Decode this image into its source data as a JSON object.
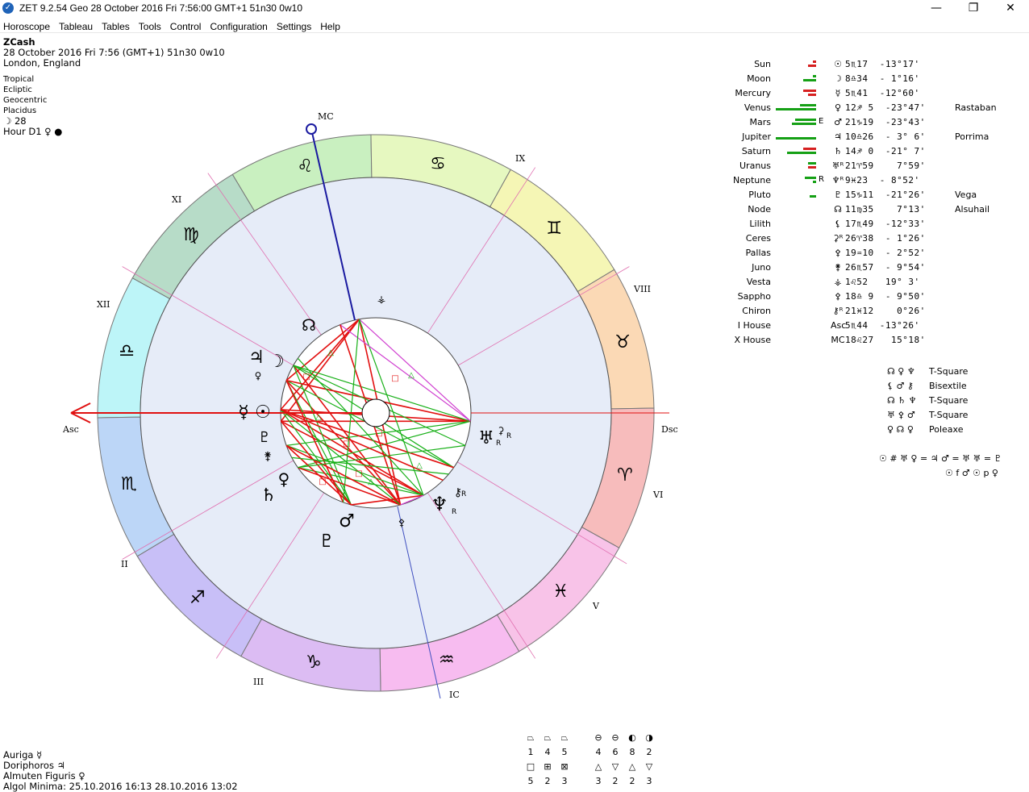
{
  "window": {
    "title": "ZET 9.2.54 Geo   28 October 2016   Fri    7:56:00 GMT+1 51n30  0w10",
    "minimize": "—",
    "maximize": "❐",
    "close": "✕"
  },
  "menu": [
    "Horoscope",
    "Tableau",
    "Tables",
    "Tools",
    "Control",
    "Configuration",
    "Settings",
    "Help"
  ],
  "info": {
    "name": "ZCash",
    "datetime": "28 October 2016   Fri    7:56  (GMT+1)  51n30   0w10",
    "place": "London, England",
    "settings": [
      "Tropical",
      "Ecliptic",
      "Geocentric",
      "Placidus"
    ],
    "moon_day": "☽   28",
    "hour": "Hour D1  ♀  ●"
  },
  "chart_labels": {
    "mc": "MC",
    "ic": "IC",
    "asc": "Asc",
    "dsc": "Dsc",
    "houses": [
      "XII",
      "XI",
      "IX",
      "VIII",
      "VI",
      "V",
      "III",
      "II"
    ]
  },
  "planets": [
    {
      "name": "Sun",
      "glyph": "☉",
      "pos": "5♏17  -13°17'",
      "star": "",
      "bars": [
        {
          "c": "#d62020",
          "w": 4,
          "row": 0
        },
        {
          "c": "#d62020",
          "w": 10,
          "row": 1
        }
      ]
    },
    {
      "name": "Moon",
      "glyph": "☽",
      "pos": "8♎34  - 1°16'",
      "star": "",
      "bars": [
        {
          "c": "#15a015",
          "w": 4,
          "row": 0
        },
        {
          "c": "#15a015",
          "w": 16,
          "row": 1
        }
      ]
    },
    {
      "name": "Mercury",
      "glyph": "☿",
      "pos": "5♏41  -12°60'",
      "star": "",
      "bars": [
        {
          "c": "#d62020",
          "w": 16,
          "row": 0
        },
        {
          "c": "#d62020",
          "w": 10,
          "row": 1
        }
      ]
    },
    {
      "name": "Venus",
      "glyph": "♀",
      "pos": "12♐ 5  -23°47'",
      "star": "Rastaban",
      "bars": [
        {
          "c": "#15a015",
          "w": 20,
          "row": 0
        },
        {
          "c": "#15a015",
          "w": 50,
          "row": 1
        }
      ]
    },
    {
      "name": "Mars",
      "glyph": "♂",
      "pos": "21♑19  -23°43'",
      "star": "",
      "flag": "E",
      "bars": [
        {
          "c": "#15a015",
          "w": 26,
          "row": 0
        },
        {
          "c": "#15a015",
          "w": 30,
          "row": 1
        }
      ]
    },
    {
      "name": "Jupiter",
      "glyph": "♃",
      "pos": "10♎26  - 3° 6'",
      "star": "Porrima",
      "bars": [
        {
          "c": "#15a015",
          "w": 50,
          "row": 1
        }
      ]
    },
    {
      "name": "Saturn",
      "glyph": "♄",
      "pos": "14♐ 0  -21° 7'",
      "star": "",
      "bars": [
        {
          "c": "#d62020",
          "w": 16,
          "row": 0
        },
        {
          "c": "#15a015",
          "w": 36,
          "row": 1
        }
      ]
    },
    {
      "name": "Uranus",
      "glyph": "♅ᴿ",
      "pos": "21♈59    7°59'",
      "star": "",
      "bars": [
        {
          "c": "#15a015",
          "w": 10,
          "row": 0
        },
        {
          "c": "#d62020",
          "w": 10,
          "row": 1
        }
      ]
    },
    {
      "name": "Neptune",
      "glyph": "♆ᴿ",
      "pos": "9♓23  - 8°52'",
      "star": "",
      "flag": "R",
      "bars": [
        {
          "c": "#15a015",
          "w": 14,
          "row": 0
        },
        {
          "c": "#15a015",
          "w": 4,
          "row": 1
        }
      ]
    },
    {
      "name": "Pluto",
      "glyph": "♇",
      "pos": "15♑11  -21°26'",
      "star": "Vega",
      "bars": [
        {
          "c": "#15a015",
          "w": 8,
          "row": 1
        }
      ]
    },
    {
      "name": "Node",
      "glyph": "☊",
      "pos": "11♍35    7°13'",
      "star": "Alsuhail",
      "bars": []
    },
    {
      "name": "Lilith",
      "glyph": "⚸",
      "pos": "17♏49  -12°33'",
      "star": "",
      "bars": []
    },
    {
      "name": "Ceres",
      "glyph": "⚳ᴿ",
      "pos": "26♈38  - 1°26'",
      "star": "",
      "bars": []
    },
    {
      "name": "Pallas",
      "glyph": "⚴",
      "pos": "19♒10  - 2°52'",
      "star": "",
      "bars": []
    },
    {
      "name": "Juno",
      "glyph": "⚵",
      "pos": "26♏57  - 9°54'",
      "star": "",
      "bars": []
    },
    {
      "name": "Vesta",
      "glyph": "⚶",
      "pos": "1♌52   19° 3'",
      "star": "",
      "bars": []
    },
    {
      "name": "Sappho",
      "glyph": "⚴",
      "pos": "18♎ 9  - 9°50'",
      "star": "",
      "bars": []
    },
    {
      "name": "Chiron",
      "glyph": "⚷ᴿ",
      "pos": "21♓12    0°26'",
      "star": "",
      "bars": []
    },
    {
      "name": "I House",
      "glyph": "Asc",
      "pos": "5♏44  -13°26'",
      "star": "",
      "bars": []
    },
    {
      "name": "X House",
      "glyph": "MC",
      "pos": "18♌27   15°18'",
      "star": "",
      "bars": []
    }
  ],
  "configurations": [
    {
      "glyphs": "☊ ♀ ♆",
      "label": "T-Square"
    },
    {
      "glyphs": "⚸ ♂ ⚷",
      "label": "Bisextile"
    },
    {
      "glyphs": "☊ ♄ ♆",
      "label": "T-Square"
    },
    {
      "glyphs": "♅ ⚴ ♂",
      "label": "T-Square"
    },
    {
      "glyphs": "♀ ☊ ♀",
      "label": "Poleaxe"
    }
  ],
  "midpoints": {
    "line1": "☉ # ♅  ♀ = ♃  ♂ = ♅  ♅ = ♇",
    "line2": "☉ f ♂  ☉ p ♀"
  },
  "bottom": {
    "auriga": "Auriga  ☿",
    "doriphoros": "Doriphoros  ♃",
    "almuten": "Almuten Figuris  ♀",
    "algol": "Algol Minima: 25.10.2016 16:13   28.10.2016 13:02"
  },
  "element_stats": {
    "symbols": [
      "⏢",
      "⏢",
      "⏢",
      "⊖",
      "⊖",
      "◐",
      "◑"
    ],
    "values": [
      "1",
      "4",
      "5",
      "4",
      "6",
      "8",
      "2"
    ]
  },
  "mode_stats": {
    "symbols": [
      "□",
      "⊞",
      "⊠",
      "△",
      "▽",
      "△",
      "▽"
    ],
    "values": [
      "5",
      "2",
      "3",
      "3",
      "2",
      "2",
      "3"
    ]
  },
  "colors": {
    "fire_orange": "#fbd9b8",
    "earth_leo": "#c9f0c0",
    "cancer": "#e6f8c0",
    "gemini": "#f5f6b5",
    "taurus": "#fbd9b5",
    "aries": "#f7bcbc",
    "pisces": "#f8c3e8",
    "aquarius": "#f7bcf0",
    "capricorn": "#dcbcf3",
    "sagittarius": "#c8bff7",
    "scorpio": "#bcd6f7",
    "libra": "#bdf5f8",
    "virgo": "#b7dcc8",
    "inner_bg": "#e6ecf8",
    "red": "#e21010",
    "green": "#18b018",
    "magenta": "#d040d0",
    "blue": "#1a1aa0"
  }
}
